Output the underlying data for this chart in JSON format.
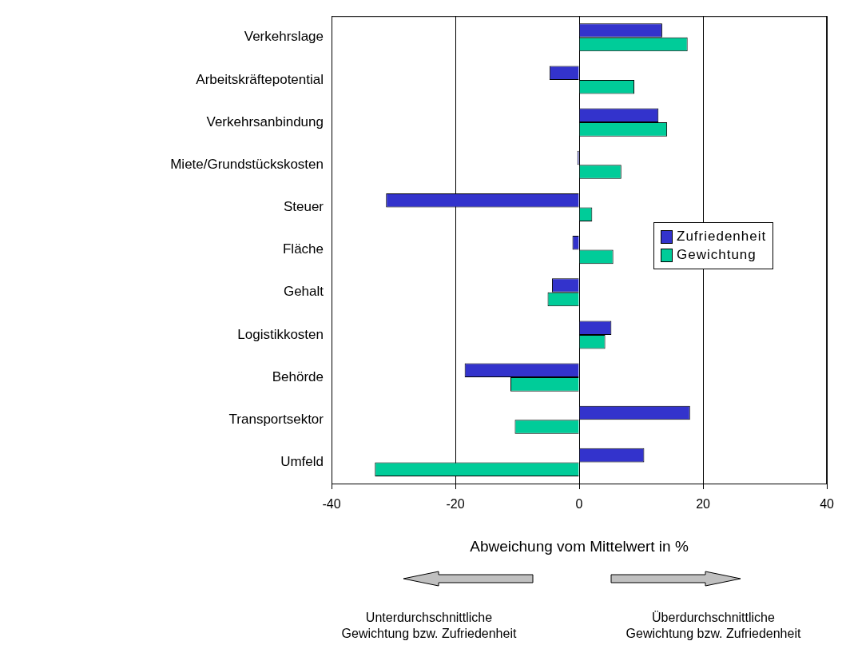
{
  "chart_data": {
    "type": "bar",
    "orientation": "horizontal",
    "xlabel": "Abweichung vom Mittelwert in %",
    "categories": [
      "Verkehrslage",
      "Arbeitskräftepotential",
      "Verkehrsanbindung",
      "Miete/Grundstückskosten",
      "Steuer",
      "Fläche",
      "Gehalt",
      "Logistikkosten",
      "Behörde",
      "Transportsektor",
      "Umfeld"
    ],
    "series": [
      {
        "name": "Zufriedenheit",
        "color": "#3333cc",
        "values": [
          13.4,
          -4.8,
          12.8,
          -0.3,
          -31.2,
          -1.1,
          -4.4,
          5.2,
          -18.5,
          17.9,
          10.5
        ]
      },
      {
        "name": "Gewichtung",
        "color": "#00cc99",
        "values": [
          17.5,
          8.9,
          14.2,
          6.8,
          2.1,
          5.5,
          -5.1,
          4.2,
          -11.1,
          -10.4,
          -33.0
        ]
      }
    ],
    "xlim": [
      -40,
      40
    ],
    "xticks": [
      -40,
      -20,
      0,
      20,
      40
    ],
    "grid": "x",
    "legend": "right",
    "annotations": [
      "Unterdurchschnittliche Gewichtung bzw. Zufriedenheit",
      "Überdurchschnittliche Gewichtung bzw. Zufriedenheit"
    ]
  }
}
